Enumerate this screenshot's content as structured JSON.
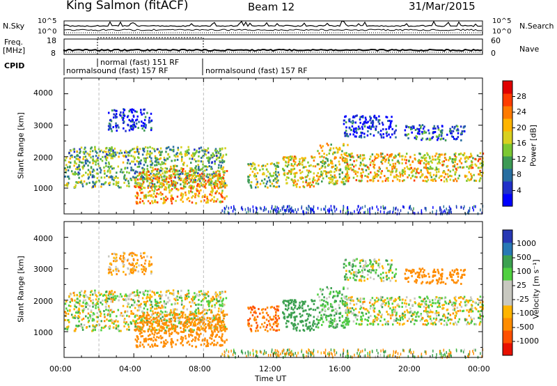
{
  "header": {
    "station": "King Salmon (fitACF)",
    "beam": "Beam 12",
    "date": "31/Mar/2015"
  },
  "aux": {
    "nsky_label": "N.Sky",
    "nsky_ticks": [
      "10^5",
      "10^0"
    ],
    "nsearch_label": "N.Search",
    "nsearch_ticks": [
      "10^5",
      "10^0"
    ],
    "freq_label_line1": "Freq.",
    "freq_label_line2": "[MHz]",
    "freq_ticks": [
      "18",
      "8"
    ],
    "nave_label": "Nave",
    "nave_ticks": [
      "60",
      "0"
    ],
    "cpid_label": "CPID"
  },
  "cpid_segments": [
    {
      "label": "normalsound (fast) 157 RF",
      "start_hour": 0,
      "end_hour": 8
    },
    {
      "label": "normal (fast) 151 RF",
      "start_hour": 2,
      "end_hour": 8
    },
    {
      "label": "normalsound (fast) 157 RF",
      "start_hour": 8,
      "end_hour": 24
    }
  ],
  "power_panel": {
    "ylabel": "Slant Range [km]",
    "yticks": [
      "1000",
      "2000",
      "3000",
      "4000"
    ],
    "colorbar_label": "Power [dB]",
    "colorbar_ticks": [
      "4",
      "8",
      "12",
      "16",
      "20",
      "24",
      "28"
    ],
    "colorbar_colors": [
      "#0000ff",
      "#2030c8",
      "#286ea0",
      "#3d9a55",
      "#7cc832",
      "#d8d020",
      "#ffb400",
      "#ff7a00",
      "#ff3c00",
      "#e00000"
    ]
  },
  "velocity_panel": {
    "ylabel": "Slant Range [km]",
    "yticks": [
      "1000",
      "2000",
      "3000",
      "4000"
    ],
    "colorbar_label": "Velocity [m s⁻¹]",
    "colorbar_ticks": [
      "1000",
      "500",
      "100",
      "25",
      "-25",
      "-100",
      "-500",
      "-1000"
    ],
    "colorbar_colors": [
      "#2838b4",
      "#2878b4",
      "#3ca050",
      "#50d040",
      "#c8c8c0",
      "#c8c8c0",
      "#ffb400",
      "#ff8c00",
      "#ff5000",
      "#e81000"
    ]
  },
  "xaxis": {
    "label": "Time UT",
    "ticks": [
      "00:00",
      "04:00",
      "08:00",
      "12:00",
      "16:00",
      "20:00",
      "00:00"
    ]
  },
  "chart_data": {
    "type": "heatmap",
    "x_range_hours": [
      0,
      24
    ],
    "y_range_km": [
      180,
      4500
    ],
    "echo_regions": [
      {
        "start_hour": 0.0,
        "end_hour": 9.3,
        "range_km": [
          1000,
          2300
        ],
        "power_db": 14,
        "velocity_ms": 0
      },
      {
        "start_hour": 4.0,
        "end_hour": 9.3,
        "range_km": [
          500,
          1600
        ],
        "power_db": 22,
        "velocity_ms": -300
      },
      {
        "start_hour": 2.5,
        "end_hour": 5.0,
        "range_km": [
          2800,
          3500
        ],
        "power_db": 6,
        "velocity_ms": -100
      },
      {
        "start_hour": 10.5,
        "end_hour": 12.3,
        "range_km": [
          1000,
          1800
        ],
        "power_db": 16,
        "velocity_ms": -500
      },
      {
        "start_hour": 12.5,
        "end_hour": 14.5,
        "range_km": [
          1000,
          2000
        ],
        "power_db": 20,
        "velocity_ms": 300
      },
      {
        "start_hour": 14.5,
        "end_hour": 16.3,
        "range_km": [
          1100,
          2400
        ],
        "power_db": 18,
        "velocity_ms": 100
      },
      {
        "start_hour": 16.0,
        "end_hour": 24.0,
        "range_km": [
          1200,
          2100
        ],
        "power_db": 20,
        "velocity_ms": 0
      },
      {
        "start_hour": 19.5,
        "end_hour": 23.0,
        "range_km": [
          2500,
          3000
        ],
        "power_db": 8,
        "velocity_ms": -300
      },
      {
        "start_hour": 16.0,
        "end_hour": 19.0,
        "range_km": [
          2600,
          3300
        ],
        "power_db": 5,
        "velocity_ms": 50
      }
    ]
  }
}
